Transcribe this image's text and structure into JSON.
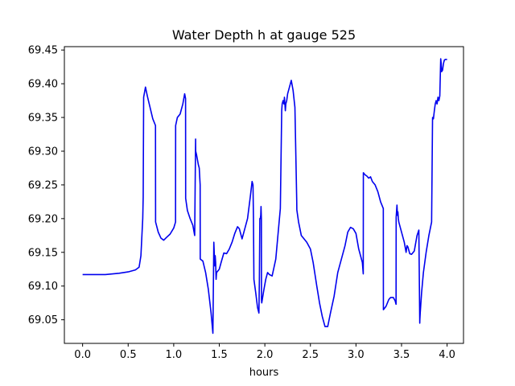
{
  "chart_data": {
    "type": "line",
    "title": "Water Depth h at gauge 525",
    "xlabel": "hours",
    "ylabel": "",
    "xlim": [
      -0.2,
      4.18
    ],
    "ylim": [
      69.015,
      69.455
    ],
    "xticks": [
      0.0,
      0.5,
      1.0,
      1.5,
      2.0,
      2.5,
      3.0,
      3.5,
      4.0
    ],
    "xtick_labels": [
      "0.0",
      "0.5",
      "1.0",
      "1.5",
      "2.0",
      "2.5",
      "3.0",
      "3.5",
      "4.0"
    ],
    "yticks": [
      69.05,
      69.1,
      69.15,
      69.2,
      69.25,
      69.3,
      69.35,
      69.4,
      69.45
    ],
    "ytick_labels": [
      "69.05",
      "69.10",
      "69.15",
      "69.20",
      "69.25",
      "69.30",
      "69.35",
      "69.40",
      "69.45"
    ],
    "grid": false,
    "series": [
      {
        "color": "#0000ee",
        "x": [
          0.0,
          0.25,
          0.4,
          0.5,
          0.58,
          0.62,
          0.64,
          0.66,
          0.665,
          0.67,
          0.69,
          0.71,
          0.74,
          0.77,
          0.8,
          0.801,
          0.83,
          0.86,
          0.89,
          0.92,
          0.96,
          1.0,
          1.02,
          1.021,
          1.04,
          1.07,
          1.1,
          1.12,
          1.13,
          1.131,
          1.15,
          1.18,
          1.21,
          1.23,
          1.24,
          1.241,
          1.25,
          1.27,
          1.28,
          1.29,
          1.291,
          1.32,
          1.35,
          1.38,
          1.41,
          1.43,
          1.44,
          1.441,
          1.45,
          1.455,
          1.46,
          1.465,
          1.47,
          1.5,
          1.52,
          1.55,
          1.58,
          1.61,
          1.64,
          1.67,
          1.7,
          1.72,
          1.75,
          1.78,
          1.81,
          1.84,
          1.86,
          1.87,
          1.875,
          1.88,
          1.9,
          1.92,
          1.935,
          1.94,
          1.945,
          1.95,
          1.955,
          1.958,
          1.962,
          1.963,
          1.966,
          1.99,
          2.01,
          2.03,
          2.05,
          2.08,
          2.12,
          2.17,
          2.185,
          2.19,
          2.2,
          2.21,
          2.215,
          2.22,
          2.225,
          2.23,
          2.24,
          2.25,
          2.27,
          2.29,
          2.31,
          2.33,
          2.35,
          2.351,
          2.37,
          2.4,
          2.43,
          2.46,
          2.5,
          2.53,
          2.57,
          2.6,
          2.63,
          2.66,
          2.69,
          2.72,
          2.76,
          2.8,
          2.84,
          2.88,
          2.91,
          2.94,
          2.97,
          3.0,
          3.03,
          3.07,
          3.08,
          3.081,
          3.1,
          3.12,
          3.14,
          3.16,
          3.18,
          3.21,
          3.24,
          3.27,
          3.3,
          3.301,
          3.33,
          3.36,
          3.38,
          3.41,
          3.43,
          3.44,
          3.441,
          3.45,
          3.455,
          3.46,
          3.465,
          3.47,
          3.49,
          3.51,
          3.53,
          3.55,
          3.56,
          3.57,
          3.59,
          3.61,
          3.64,
          3.67,
          3.69,
          3.7,
          3.701,
          3.705,
          3.71,
          3.72,
          3.74,
          3.77,
          3.8,
          3.83,
          3.84,
          3.841,
          3.85,
          3.86,
          3.87,
          3.88,
          3.89,
          3.9,
          3.91,
          3.92,
          3.93,
          3.935,
          3.94,
          3.95,
          3.96,
          3.97,
          3.98,
          4.0
        ],
        "y": [
          69.117,
          69.117,
          69.119,
          69.121,
          69.124,
          69.128,
          69.145,
          69.2,
          69.232,
          69.38,
          69.395,
          69.382,
          69.365,
          69.348,
          69.338,
          69.195,
          69.18,
          69.171,
          69.168,
          69.172,
          69.177,
          69.186,
          69.195,
          69.338,
          69.35,
          69.355,
          69.37,
          69.385,
          69.378,
          69.23,
          69.212,
          69.2,
          69.19,
          69.175,
          69.318,
          69.3,
          69.295,
          69.28,
          69.275,
          69.25,
          69.14,
          69.137,
          69.12,
          69.095,
          69.06,
          69.03,
          69.165,
          69.162,
          69.13,
          69.145,
          69.135,
          69.11,
          69.12,
          69.125,
          69.135,
          69.149,
          69.148,
          69.155,
          69.165,
          69.178,
          69.188,
          69.185,
          69.17,
          69.185,
          69.2,
          69.232,
          69.255,
          69.25,
          69.2,
          69.11,
          69.09,
          69.068,
          69.06,
          69.11,
          69.2,
          69.2,
          69.205,
          69.218,
          69.2,
          69.08,
          69.075,
          69.095,
          69.11,
          69.12,
          69.117,
          69.115,
          69.14,
          69.215,
          69.36,
          69.37,
          69.375,
          69.37,
          69.38,
          69.37,
          69.36,
          69.37,
          69.375,
          69.385,
          69.395,
          69.405,
          69.39,
          69.365,
          69.225,
          69.213,
          69.195,
          69.175,
          69.17,
          69.165,
          69.155,
          69.135,
          69.1,
          69.075,
          69.055,
          69.04,
          69.04,
          69.06,
          69.085,
          69.12,
          69.14,
          69.16,
          69.18,
          69.187,
          69.185,
          69.178,
          69.155,
          69.135,
          69.118,
          69.268,
          69.265,
          69.263,
          69.26,
          69.262,
          69.255,
          69.25,
          69.24,
          69.225,
          69.215,
          69.065,
          69.07,
          69.08,
          69.083,
          69.083,
          69.078,
          69.073,
          69.202,
          69.22,
          69.205,
          69.21,
          69.2,
          69.195,
          69.185,
          69.175,
          69.165,
          69.15,
          69.16,
          69.158,
          69.148,
          69.147,
          69.152,
          69.175,
          69.183,
          69.045,
          69.05,
          69.06,
          69.07,
          69.09,
          69.12,
          69.15,
          69.175,
          69.195,
          69.345,
          69.35,
          69.348,
          69.36,
          69.37,
          69.375,
          69.37,
          69.38,
          69.375,
          69.382,
          69.437,
          69.43,
          69.418,
          69.42,
          69.43,
          69.435,
          69.436,
          69.436
        ]
      }
    ]
  }
}
